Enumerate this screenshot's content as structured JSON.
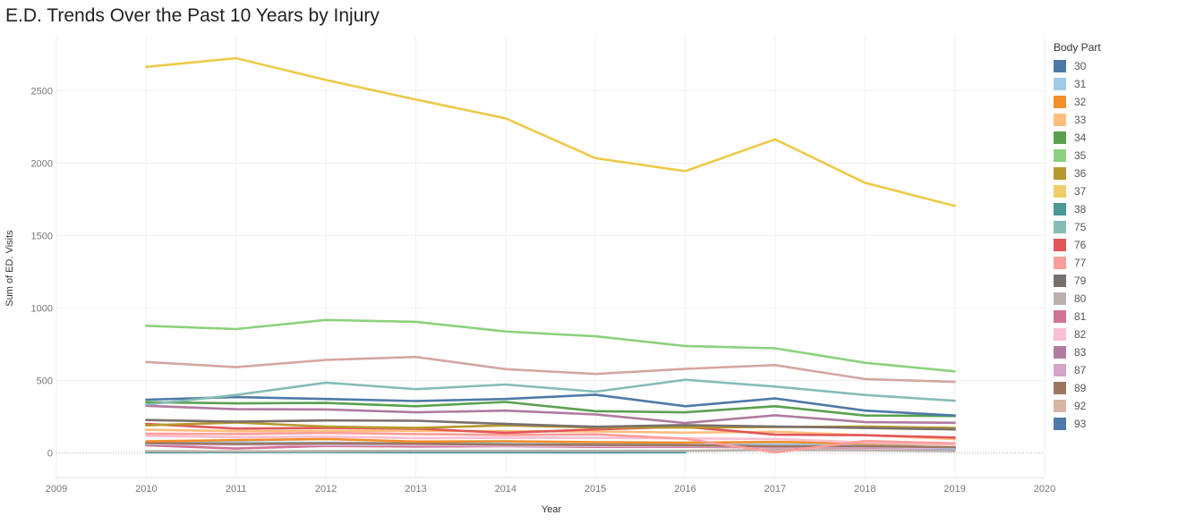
{
  "chart_data": {
    "type": "line",
    "title": "E.D. Trends Over the Past 10 Years by Injury",
    "xlabel": "Year",
    "ylabel": "Sum of ED. Visits",
    "xlim": [
      2009,
      2020
    ],
    "ylim": [
      -170,
      2880
    ],
    "x_ticks": [
      "2009",
      "2010",
      "2011",
      "2012",
      "2013",
      "2014",
      "2015",
      "2016",
      "2017",
      "2018",
      "2019",
      "2020"
    ],
    "y_ticks": [
      0,
      500,
      1000,
      1500,
      2000,
      2500
    ],
    "legend_title": "Body Part",
    "legend_position": "right",
    "x": [
      2010,
      2011,
      2012,
      2013,
      2014,
      2015,
      2016,
      2017,
      2018,
      2019
    ],
    "series": [
      {
        "name": "37",
        "color": "#EDC948",
        "values": [
          2665,
          2725,
          2575,
          2440,
          2310,
          2035,
          1945,
          2165,
          1865,
          1705
        ]
      },
      {
        "name": "35",
        "color": "#8CD17D",
        "values": [
          878,
          855,
          918,
          905,
          838,
          805,
          738,
          722,
          622,
          563
        ]
      },
      {
        "name": "92",
        "color": "#D4A6A0",
        "values": [
          628,
          592,
          642,
          662,
          578,
          545,
          580,
          606,
          510,
          490
        ]
      },
      {
        "name": "75",
        "color": "#86BCB6",
        "values": [
          333,
          400,
          485,
          440,
          472,
          423,
          505,
          458,
          400,
          360
        ]
      },
      {
        "name": "93",
        "color": "#4E79A7",
        "values": [
          367,
          385,
          372,
          358,
          372,
          402,
          322,
          376,
          292,
          258
        ]
      },
      {
        "name": "34",
        "color": "#59A14F",
        "values": [
          350,
          342,
          345,
          322,
          352,
          288,
          280,
          322,
          258,
          255
        ]
      },
      {
        "name": "83",
        "color": "#B07AA1",
        "values": [
          325,
          302,
          300,
          280,
          292,
          266,
          206,
          260,
          212,
          208
        ]
      },
      {
        "name": "79",
        "color": "#79706E",
        "values": [
          227,
          215,
          224,
          222,
          200,
          180,
          192,
          182,
          172,
          162
        ]
      },
      {
        "name": "36",
        "color": "#B6992D",
        "values": [
          190,
          210,
          182,
          172,
          190,
          175,
          175,
          178,
          182,
          172
        ]
      },
      {
        "name": "76",
        "color": "#E15759",
        "values": [
          200,
          168,
          172,
          168,
          138,
          162,
          180,
          126,
          122,
          106
        ]
      },
      {
        "name": "33",
        "color": "#FFBE7D",
        "values": [
          160,
          150,
          152,
          152,
          150,
          148,
          140,
          146,
          122,
          96
        ]
      },
      {
        "name": "77",
        "color": "#FF9D9A",
        "values": [
          132,
          130,
          138,
          130,
          124,
          128,
          98,
          4,
          82,
          66
        ]
      },
      {
        "name": "82",
        "color": "#FABFD2",
        "values": [
          118,
          108,
          112,
          102,
          104,
          104,
          100,
          96,
          72,
          60
        ]
      },
      {
        "name": "32",
        "color": "#F28E2B",
        "values": [
          80,
          88,
          96,
          78,
          80,
          74,
          70,
          76,
          65,
          60
        ]
      },
      {
        "name": "89",
        "color": "#9D7660",
        "values": [
          68,
          62,
          66,
          64,
          58,
          56,
          52,
          46,
          46,
          40
        ]
      },
      {
        "name": "31",
        "color": "#A0CBE8",
        "values": [
          70,
          72,
          70,
          66,
          62,
          60,
          60,
          58,
          56,
          35
        ]
      },
      {
        "name": "87",
        "color": "#D7B5D8",
        "values": [
          60,
          58,
          56,
          54,
          50,
          48,
          46,
          44,
          40,
          30
        ]
      },
      {
        "name": "30",
        "color": "#4E79A7",
        "values": [
          58,
          60,
          58,
          56,
          54,
          52,
          50,
          48,
          42,
          28
        ]
      },
      {
        "name": "81",
        "color": "#D37295",
        "values": [
          52,
          30,
          48,
          44,
          46,
          42,
          42,
          38,
          36,
          28
        ]
      },
      {
        "name": "80",
        "color": "#BAB0AC",
        "values": [
          12,
          10,
          12,
          14,
          14,
          14,
          14,
          20,
          18,
          12
        ]
      },
      {
        "name": "38",
        "color": "#499894",
        "values": [
          4,
          5,
          6,
          4,
          4,
          3,
          4,
          null,
          null,
          null
        ]
      }
    ]
  },
  "legend": [
    {
      "label": "30",
      "color": "#4E79A7"
    },
    {
      "label": "31",
      "color": "#A0CBE8"
    },
    {
      "label": "32",
      "color": "#F28E2B"
    },
    {
      "label": "33",
      "color": "#FFBE7D"
    },
    {
      "label": "34",
      "color": "#59A14F"
    },
    {
      "label": "35",
      "color": "#8CD17D"
    },
    {
      "label": "36",
      "color": "#B6992D"
    },
    {
      "label": "37",
      "color": "#F1CE63"
    },
    {
      "label": "38",
      "color": "#499894"
    },
    {
      "label": "75",
      "color": "#86BCB6"
    },
    {
      "label": "76",
      "color": "#E15759"
    },
    {
      "label": "77",
      "color": "#FF9D9A"
    },
    {
      "label": "79",
      "color": "#79706E"
    },
    {
      "label": "80",
      "color": "#BAB0AC"
    },
    {
      "label": "81",
      "color": "#D37295"
    },
    {
      "label": "82",
      "color": "#FABFD2"
    },
    {
      "label": "83",
      "color": "#B07AA1"
    },
    {
      "label": "87",
      "color": "#D4A6C8"
    },
    {
      "label": "89",
      "color": "#9D7660"
    },
    {
      "label": "92",
      "color": "#D7B5A6"
    },
    {
      "label": "93",
      "color": "#4E79A7"
    }
  ]
}
